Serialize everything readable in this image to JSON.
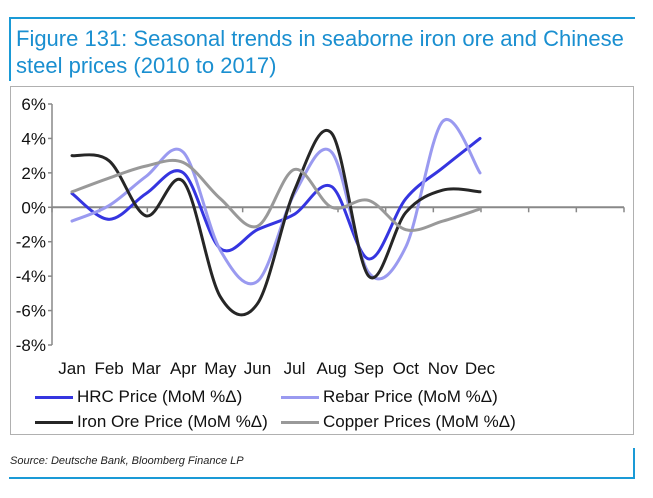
{
  "title": "Figure 131: Seasonal trends in seaborne iron ore and Chinese steel prices (2010 to 2017)",
  "source": "Source: Deutsche Bank, Bloomberg Finance LP",
  "chart_data": {
    "type": "line",
    "title": "Figure 131: Seasonal trends in seaborne iron ore and Chinese steel prices (2010 to 2017)",
    "categories": [
      "Jan",
      "Feb",
      "Mar",
      "Apr",
      "May",
      "Jun",
      "Jul",
      "Aug",
      "Sep",
      "Oct",
      "Nov",
      "Dec"
    ],
    "y_ticks": [
      "6%",
      "4%",
      "2%",
      "0%",
      "-2%",
      "-4%",
      "-6%",
      "-8%"
    ],
    "ylim": [
      -8,
      6
    ],
    "y_unit": "%",
    "grid": false,
    "smoothed": true,
    "legend_position": "bottom",
    "series": [
      {
        "name": "HRC Price (MoM %Δ)",
        "color": "#3535e0",
        "values": [
          0.8,
          -0.7,
          0.8,
          2.0,
          -2.4,
          -1.3,
          -0.4,
          1.2,
          -3.0,
          0.5,
          2.3,
          4.0
        ]
      },
      {
        "name": "Rebar Price (MoM %Δ)",
        "color": "#9a9af0",
        "values": [
          -0.8,
          0.1,
          1.8,
          3.2,
          -2.5,
          -4.3,
          0.8,
          3.2,
          -3.8,
          -2.3,
          5.0,
          2.0
        ]
      },
      {
        "name": "Iron Ore Price (MoM %Δ)",
        "color": "#262626",
        "values": [
          3.0,
          2.7,
          -0.5,
          1.5,
          -5.2,
          -5.6,
          1.0,
          4.3,
          -4.0,
          -0.3,
          1.0,
          0.9
        ]
      },
      {
        "name": "Copper Prices (MoM %Δ)",
        "color": "#999999",
        "values": [
          0.9,
          1.7,
          2.4,
          2.6,
          0.5,
          -1.1,
          2.2,
          0.0,
          0.4,
          -1.3,
          -0.8,
          -0.1
        ]
      }
    ]
  }
}
